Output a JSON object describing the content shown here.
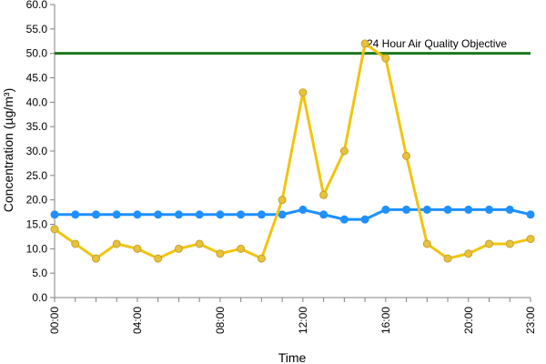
{
  "chart_data": {
    "type": "line",
    "xlabel": "Time",
    "ylabel": "Concentration (µg/m³)",
    "ylim": [
      0,
      60
    ],
    "y_ticks": [
      "0.0",
      "5.0",
      "10.0",
      "15.0",
      "20.0",
      "25.0",
      "30.0",
      "35.0",
      "40.0",
      "45.0",
      "50.0",
      "55.0",
      "60.0"
    ],
    "x_tick_labels": [
      "00:00",
      "04:00",
      "08:00",
      "12:00",
      "16:00",
      "20:00",
      "23:00"
    ],
    "x_tick_hours": [
      0,
      4,
      8,
      12,
      16,
      20,
      23
    ],
    "x_hours": [
      0,
      1,
      2,
      3,
      4,
      5,
      6,
      7,
      8,
      9,
      10,
      11,
      12,
      13,
      14,
      15,
      16,
      17,
      18,
      19,
      20,
      21,
      22,
      23
    ],
    "grid": false,
    "series": [
      {
        "color": "#1e90ff",
        "marker": "circle",
        "values": [
          17,
          17,
          17,
          17,
          17,
          17,
          17,
          17,
          17,
          17,
          17,
          17,
          18,
          17,
          16,
          16,
          18,
          18,
          18,
          18,
          18,
          18,
          18,
          17
        ]
      },
      {
        "color": "#f1c40f",
        "marker": "circle",
        "values": [
          14,
          11,
          8,
          11,
          10,
          8,
          10,
          11,
          9,
          10,
          8,
          20,
          42,
          21,
          30,
          52,
          49,
          29,
          11,
          8,
          9,
          11,
          11,
          12
        ]
      }
    ],
    "reference_line": {
      "label": "24 Hour Air Quality Objective",
      "value": 50,
      "color": "#1a7a1a"
    }
  }
}
